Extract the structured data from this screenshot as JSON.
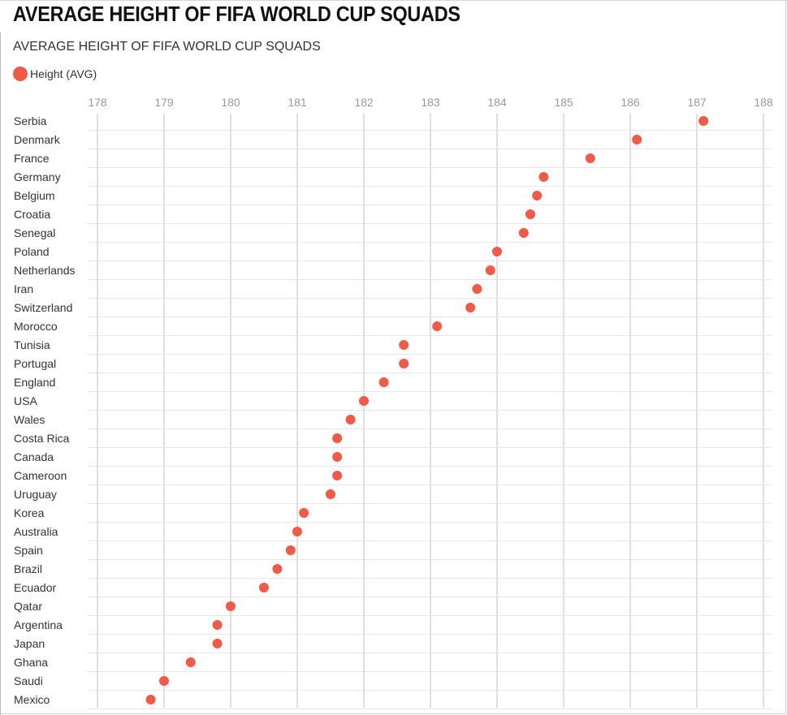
{
  "page": {
    "title": "AVERAGE HEIGHT OF FIFA WORLD CUP SQUADS"
  },
  "chart_data": {
    "type": "scatter",
    "title": "AVERAGE HEIGHT OF FIFA WORLD CUP SQUADS",
    "xlabel": "",
    "ylabel": "",
    "xlim": [
      178,
      188
    ],
    "x_ticks": [
      178,
      179,
      180,
      181,
      182,
      183,
      184,
      185,
      186,
      187,
      188
    ],
    "grid": true,
    "legend": "top-left",
    "color": "#f05a46",
    "series": [
      {
        "name": "Height (AVG)",
        "categories": [
          "Serbia",
          "Denmark",
          "France",
          "Germany",
          "Belgium",
          "Croatia",
          "Senegal",
          "Poland",
          "Netherlands",
          "Iran",
          "Switzerland",
          "Morocco",
          "Tunisia",
          "Portugal",
          "England",
          "USA",
          "Wales",
          "Costa Rica",
          "Canada",
          "Cameroon",
          "Uruguay",
          "Korea",
          "Australia",
          "Spain",
          "Brazil",
          "Ecuador",
          "Qatar",
          "Argentina",
          "Japan",
          "Ghana",
          "Saudi",
          "Mexico"
        ],
        "values": [
          187.1,
          186.1,
          185.4,
          184.7,
          184.6,
          184.5,
          184.4,
          184.0,
          183.9,
          183.7,
          183.6,
          183.1,
          182.6,
          182.6,
          182.3,
          182.0,
          181.8,
          181.6,
          181.6,
          181.6,
          181.5,
          181.1,
          181.0,
          180.9,
          180.7,
          180.5,
          180.0,
          179.8,
          179.8,
          179.4,
          179.0,
          178.8
        ]
      }
    ]
  }
}
